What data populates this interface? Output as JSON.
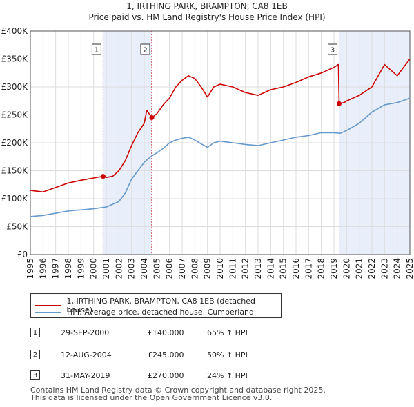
{
  "chart_data": {
    "type": "line",
    "title": "1, IRTHING PARK, BRAMPTON, CA8 1EB",
    "subtitle": "Price paid vs. HM Land Registry's House Price Index (HPI)",
    "ylim": [
      0,
      400000
    ],
    "xlim": [
      1995,
      2025
    ],
    "y_ticks": [
      0,
      50000,
      100000,
      150000,
      200000,
      250000,
      300000,
      350000,
      400000
    ],
    "y_tick_labels": [
      "£0",
      "£50K",
      "£100K",
      "£150K",
      "£200K",
      "£250K",
      "£300K",
      "£350K",
      "£400K"
    ],
    "x_ticks": [
      "1995",
      "1996",
      "1997",
      "1998",
      "1999",
      "2000",
      "2001",
      "2002",
      "2003",
      "2004",
      "2005",
      "2006",
      "2007",
      "2008",
      "2009",
      "2010",
      "2011",
      "2012",
      "2013",
      "2014",
      "2015",
      "2016",
      "2017",
      "2018",
      "2019",
      "2020",
      "2021",
      "2022",
      "2023",
      "2024",
      "2025"
    ],
    "series": [
      {
        "name": "1, IRTHING PARK, BRAMPTON, CA8 1EB (detached house)",
        "color": "#cc0000",
        "points": [
          [
            1995,
            115000
          ],
          [
            1996,
            112000
          ],
          [
            1997,
            120000
          ],
          [
            1998,
            128000
          ],
          [
            1999,
            133000
          ],
          [
            2000,
            137000
          ],
          [
            2000.75,
            140000
          ],
          [
            2001,
            138000
          ],
          [
            2001.5,
            140000
          ],
          [
            2002,
            150000
          ],
          [
            2002.5,
            168000
          ],
          [
            2003,
            195000
          ],
          [
            2003.5,
            218000
          ],
          [
            2004,
            235000
          ],
          [
            2004.2,
            258000
          ],
          [
            2004.6,
            245000
          ],
          [
            2005,
            252000
          ],
          [
            2005.5,
            268000
          ],
          [
            2006,
            280000
          ],
          [
            2006.5,
            300000
          ],
          [
            2007,
            312000
          ],
          [
            2007.5,
            320000
          ],
          [
            2008,
            315000
          ],
          [
            2008.5,
            300000
          ],
          [
            2009,
            282000
          ],
          [
            2009.5,
            300000
          ],
          [
            2010,
            305000
          ],
          [
            2011,
            300000
          ],
          [
            2012,
            290000
          ],
          [
            2013,
            285000
          ],
          [
            2014,
            295000
          ],
          [
            2015,
            300000
          ],
          [
            2016,
            308000
          ],
          [
            2017,
            318000
          ],
          [
            2018,
            325000
          ],
          [
            2019,
            335000
          ],
          [
            2019.35,
            340000
          ],
          [
            2019.41,
            270000
          ],
          [
            2019.8,
            272000
          ],
          [
            2020,
            275000
          ],
          [
            2021,
            285000
          ],
          [
            2022,
            300000
          ],
          [
            2023,
            340000
          ],
          [
            2023.5,
            330000
          ],
          [
            2024,
            320000
          ],
          [
            2024.5,
            335000
          ],
          [
            2025,
            350000
          ]
        ]
      },
      {
        "name": "HPI: Average price, detached house, Cumberland",
        "color": "#6699cc",
        "points": [
          [
            1995,
            68000
          ],
          [
            1996,
            70000
          ],
          [
            1997,
            74000
          ],
          [
            1998,
            78000
          ],
          [
            1999,
            80000
          ],
          [
            2000,
            82000
          ],
          [
            2001,
            85000
          ],
          [
            2002,
            95000
          ],
          [
            2002.5,
            110000
          ],
          [
            2003,
            135000
          ],
          [
            2003.5,
            150000
          ],
          [
            2004,
            165000
          ],
          [
            2004.5,
            175000
          ],
          [
            2005,
            182000
          ],
          [
            2005.5,
            190000
          ],
          [
            2006,
            200000
          ],
          [
            2006.5,
            205000
          ],
          [
            2007,
            208000
          ],
          [
            2007.5,
            210000
          ],
          [
            2008,
            205000
          ],
          [
            2008.5,
            198000
          ],
          [
            2009,
            192000
          ],
          [
            2009.5,
            200000
          ],
          [
            2010,
            203000
          ],
          [
            2011,
            200000
          ],
          [
            2012,
            197000
          ],
          [
            2013,
            195000
          ],
          [
            2014,
            200000
          ],
          [
            2015,
            205000
          ],
          [
            2016,
            210000
          ],
          [
            2017,
            213000
          ],
          [
            2018,
            218000
          ],
          [
            2019,
            218000
          ],
          [
            2019.5,
            217000
          ],
          [
            2020,
            222000
          ],
          [
            2021,
            235000
          ],
          [
            2022,
            255000
          ],
          [
            2023,
            268000
          ],
          [
            2024,
            272000
          ],
          [
            2025,
            280000
          ]
        ]
      }
    ],
    "transactions": [
      {
        "id": "1",
        "date": "29-SEP-2000",
        "year": 2000.75,
        "price_label": "£140,000",
        "price": 140000,
        "hpi": "65% ↑ HPI"
      },
      {
        "id": "2",
        "date": "12-AUG-2004",
        "year": 2004.6,
        "price_label": "£245,000",
        "price": 245000,
        "hpi": "50% ↑ HPI"
      },
      {
        "id": "3",
        "date": "31-MAY-2019",
        "year": 2019.41,
        "price_label": "£270,000",
        "price": 270000,
        "hpi": "24% ↑ HPI"
      }
    ],
    "footer_line1": "Contains HM Land Registry data © Crown copyright and database right 2025.",
    "footer_line2": "This data is licensed under the Open Government Licence v3.0."
  }
}
